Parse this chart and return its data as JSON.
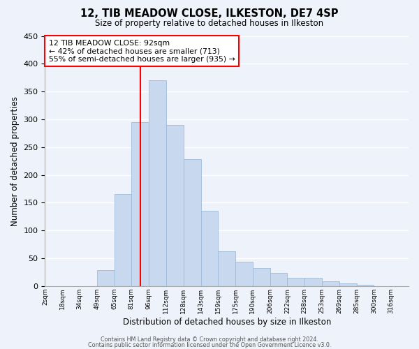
{
  "title": "12, TIB MEADOW CLOSE, ILKESTON, DE7 4SP",
  "subtitle": "Size of property relative to detached houses in Ilkeston",
  "xlabel": "Distribution of detached houses by size in Ilkeston",
  "ylabel": "Number of detached properties",
  "bar_color": "#c8d8ee",
  "bar_edge_color": "#a0bcd8",
  "vline_x": 5.5,
  "vline_color": "red",
  "categories": [
    "2sqm",
    "18sqm",
    "34sqm",
    "49sqm",
    "65sqm",
    "81sqm",
    "96sqm",
    "112sqm",
    "128sqm",
    "143sqm",
    "159sqm",
    "175sqm",
    "190sqm",
    "206sqm",
    "222sqm",
    "238sqm",
    "253sqm",
    "269sqm",
    "285sqm",
    "300sqm",
    "316sqm"
  ],
  "bar_heights": [
    0,
    0,
    0,
    28,
    165,
    295,
    370,
    290,
    228,
    135,
    62,
    44,
    32,
    24,
    15,
    15,
    8,
    5,
    2,
    0,
    0
  ],
  "ylim": [
    0,
    450
  ],
  "yticks": [
    0,
    50,
    100,
    150,
    200,
    250,
    300,
    350,
    400,
    450
  ],
  "box_text_line1": "12 TIB MEADOW CLOSE: 92sqm",
  "box_text_line2": "← 42% of detached houses are smaller (713)",
  "box_text_line3": "55% of semi-detached houses are larger (935) →",
  "box_color": "white",
  "box_edge_color": "red",
  "footnote1": "Contains HM Land Registry data © Crown copyright and database right 2024.",
  "footnote2": "Contains public sector information licensed under the Open Government Licence v3.0.",
  "background_color": "#eef2fa",
  "grid_color": "white"
}
